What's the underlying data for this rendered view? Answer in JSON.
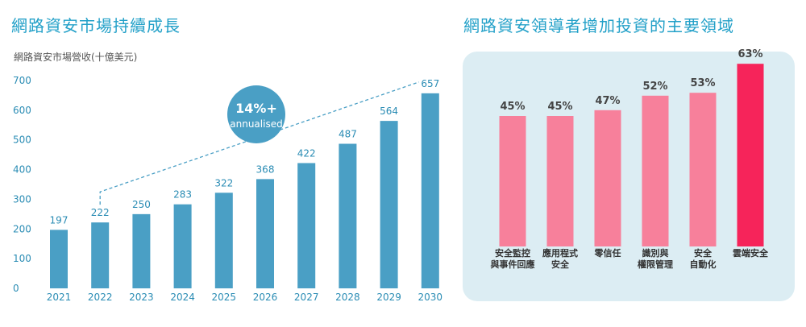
{
  "header": {
    "left_title": "網路資安市場持續成長",
    "right_title": "網路資安領導者增加投資的主要領域"
  },
  "badge": {
    "line1": "14%+",
    "line2": "annualised",
    "color": "#4a9fc5"
  },
  "chart_data": [
    {
      "type": "bar",
      "title": "網路資安市場持續成長",
      "ylabel": "網路資安市場營收(十億美元)",
      "xlabel": "",
      "categories": [
        "2021",
        "2022",
        "2023",
        "2024",
        "2025",
        "2026",
        "2027",
        "2028",
        "2029",
        "2030"
      ],
      "values": [
        197,
        222,
        250,
        283,
        322,
        368,
        422,
        487,
        564,
        657
      ],
      "yticks": [
        0,
        100,
        200,
        300,
        400,
        500,
        600,
        700
      ],
      "ylim": [
        0,
        700
      ],
      "grid": false,
      "color": "#4a9fc5",
      "annotation": "14%+ annualised"
    },
    {
      "type": "bar",
      "title": "網路資安領導者增加投資的主要領域",
      "categories": [
        [
          "安全監控",
          "與事件回應"
        ],
        [
          "應用程式",
          "安全"
        ],
        [
          "零信任"
        ],
        [
          "識別與",
          "權限管理"
        ],
        [
          "安全",
          "自動化"
        ],
        [
          "雲端安全"
        ]
      ],
      "values": [
        45,
        45,
        47,
        52,
        53,
        63
      ],
      "value_labels": [
        "45%",
        "45%",
        "47%",
        "52%",
        "53%",
        "63%"
      ],
      "unit": "%",
      "ylim": [
        0,
        70
      ],
      "grid": false,
      "colors": [
        "#f7809b",
        "#f7809b",
        "#f7809b",
        "#f7809b",
        "#f7809b",
        "#f6245a"
      ],
      "background": "#dcedf3"
    }
  ]
}
